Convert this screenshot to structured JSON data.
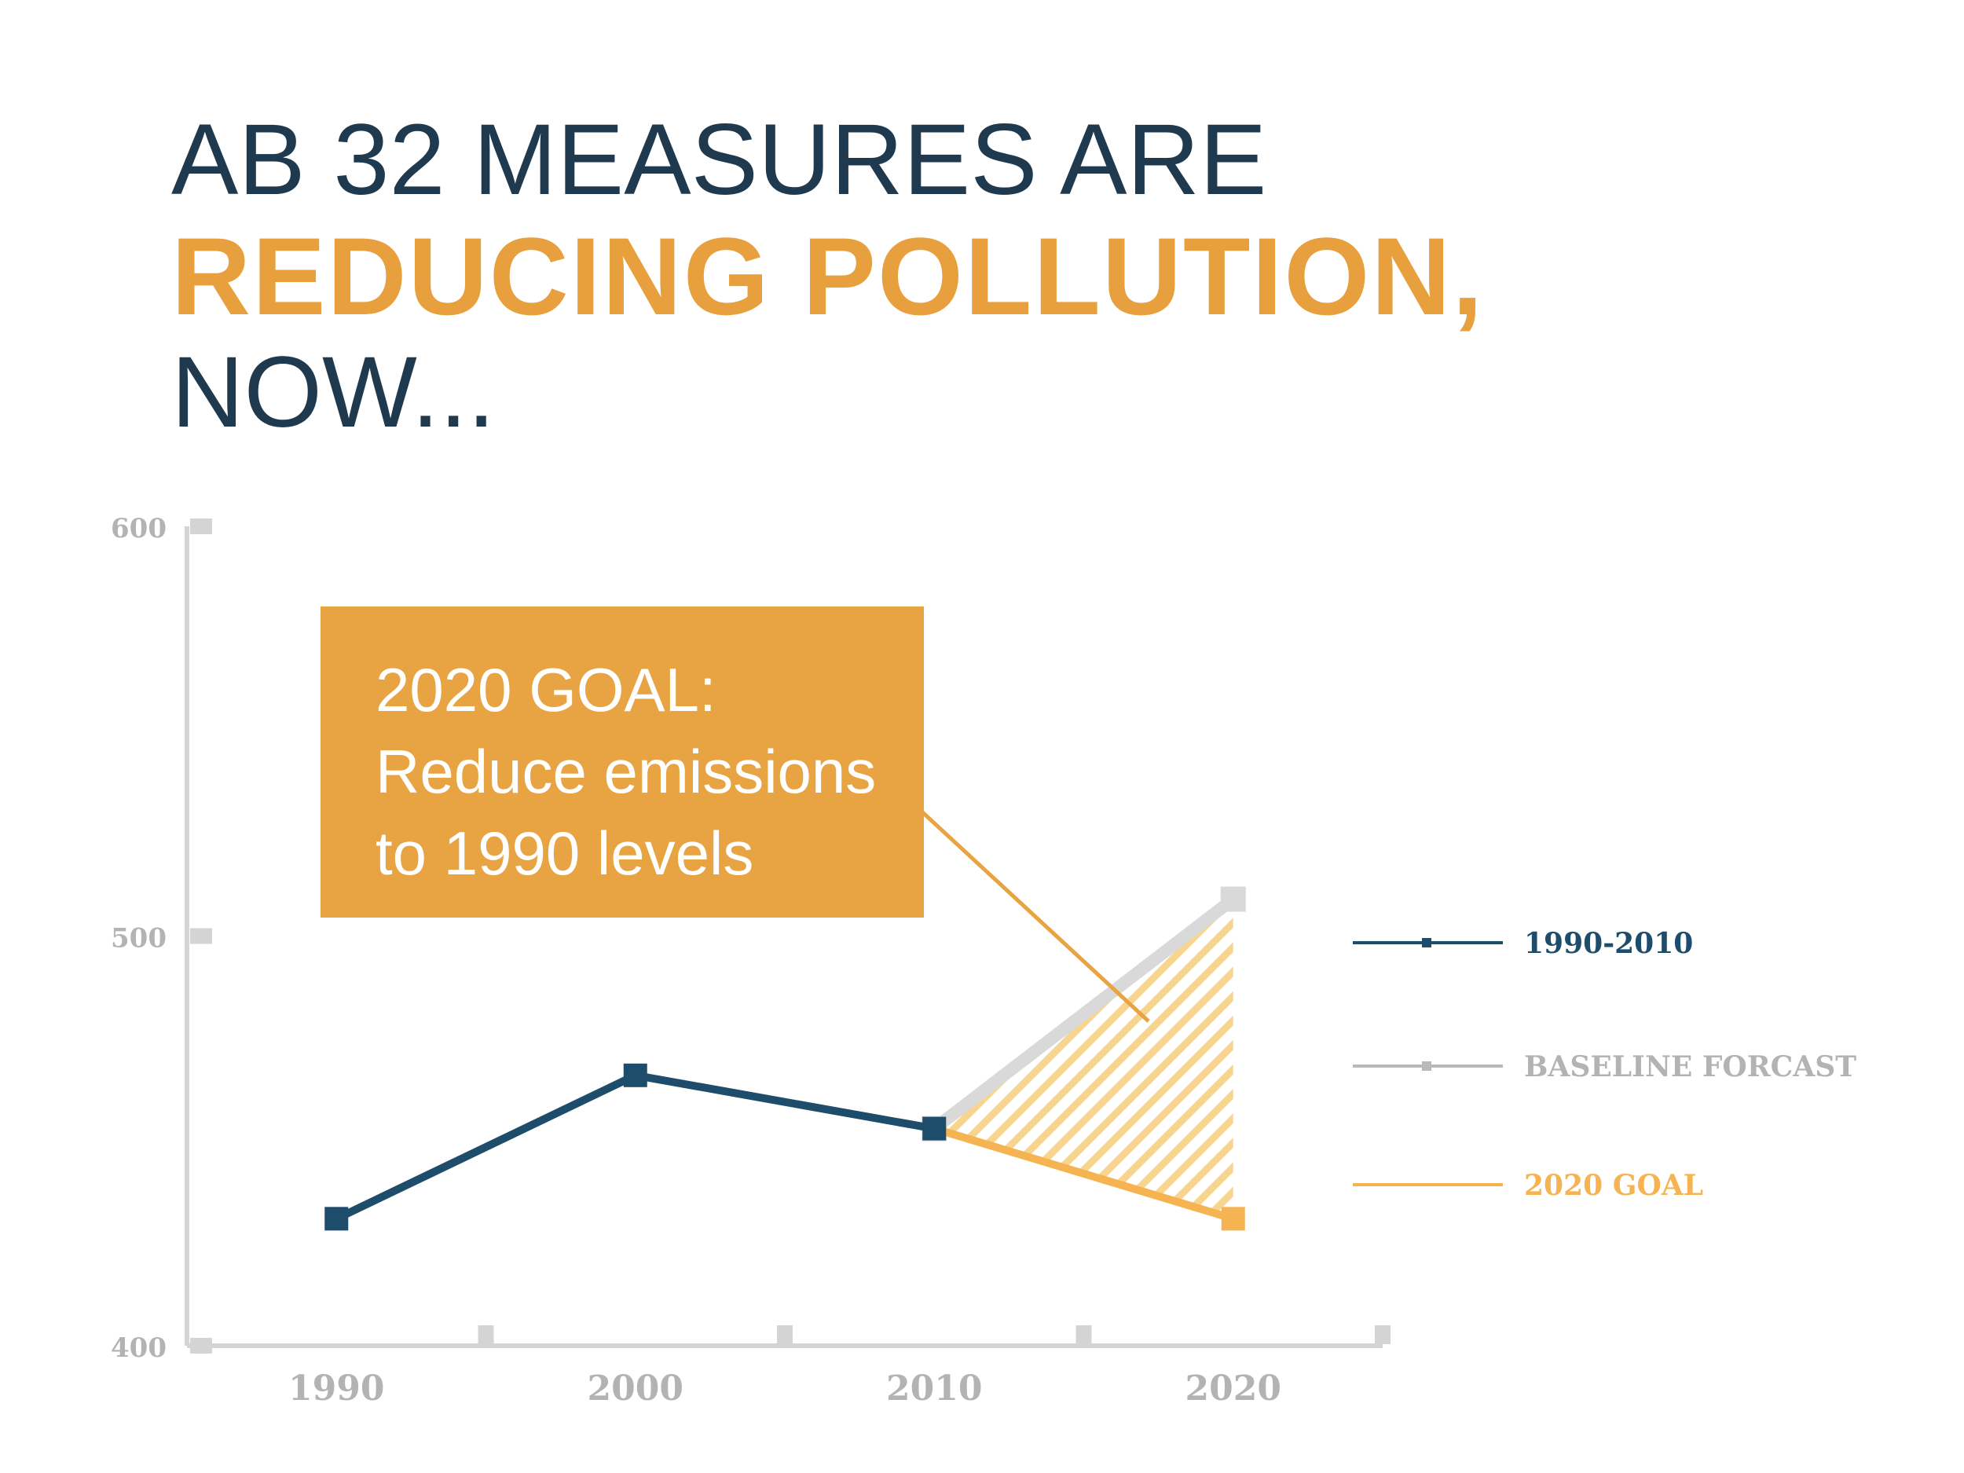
{
  "headline": {
    "line1": "AB 32 MEASURES ARE",
    "line2": "REDUCING POLLUTION,",
    "line3": "NOW..."
  },
  "callout": {
    "line1": "2020 GOAL:",
    "line2": "Reduce emissions",
    "line3": "to 1990 levels"
  },
  "colors": {
    "navy": "#1f3a4f",
    "series_navy": "#1e4d6b",
    "orange": "#e8a03e",
    "goal_orange": "#f6b352",
    "gray": "#d4d4d4",
    "label_gray": "#b3b3b3"
  },
  "chart_data": {
    "type": "line",
    "ylim": [
      400,
      600
    ],
    "yticks": [
      400,
      500,
      600
    ],
    "xlim": [
      1985,
      2025
    ],
    "xticks": [
      1990,
      2000,
      2010,
      2020
    ],
    "legend_position": "right",
    "series": [
      {
        "name": "1990-2010",
        "x": [
          1990,
          2000,
          2010
        ],
        "values": [
          431,
          466,
          453
        ],
        "color": "#1e4d6b"
      },
      {
        "name": "BASELINE FORCAST",
        "x": [
          2010,
          2020
        ],
        "values": [
          453,
          509
        ],
        "color": "#d9d9d9"
      },
      {
        "name": "2020 GOAL",
        "x": [
          2010,
          2020
        ],
        "values": [
          453,
          431
        ],
        "color": "#f6b352"
      }
    ],
    "shaded_gap": {
      "between": [
        "BASELINE FORCAST",
        "2020 GOAL"
      ],
      "pattern": "diagonal-hatch"
    }
  }
}
